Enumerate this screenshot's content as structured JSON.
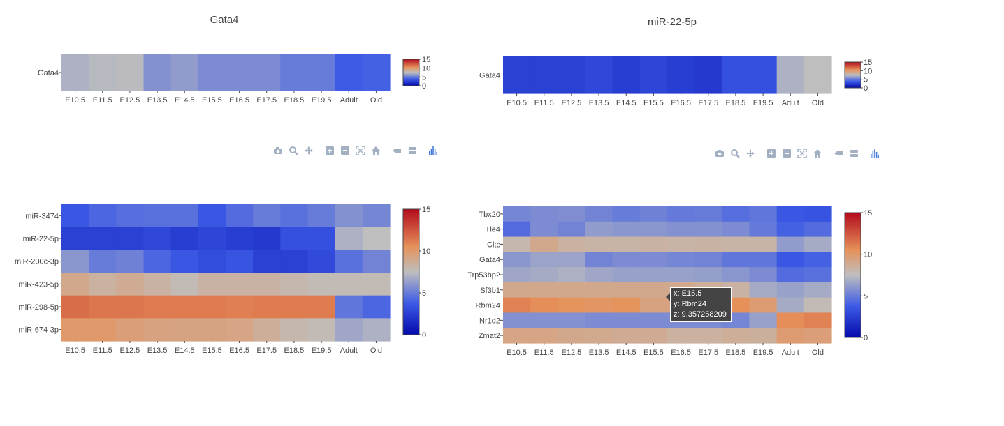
{
  "modebar": {
    "icons": [
      "camera-icon",
      "zoom-icon",
      "pan-icon",
      "zoom-in-icon",
      "zoom-out-icon",
      "autoscale-icon",
      "reset-axes-icon",
      "spike-lines-icon",
      "compare-hover-icon",
      "plotly-logo-icon"
    ],
    "color": "#a3b0c2",
    "logo_color": "#447adb"
  },
  "tooltip": {
    "x_line": "x: E15.5",
    "y_line": "y: Rbm24",
    "z_line": "z: 9.357258209"
  },
  "chart_data": [
    {
      "type": "heatmap",
      "title": "Gata4",
      "categories": [
        "E10.5",
        "E11.5",
        "E12.5",
        "E13.5",
        "E14.5",
        "E15.5",
        "E16.5",
        "E17.5",
        "E18.5",
        "E19.5",
        "Adult",
        "Old"
      ],
      "rows": [
        "Gata4"
      ],
      "z": [
        [
          7.0,
          7.3,
          7.4,
          5.8,
          6.2,
          5.6,
          5.6,
          5.6,
          5.0,
          5.0,
          3.8,
          4.0
        ]
      ],
      "zlim": [
        0,
        15
      ],
      "colorbar_ticks": [
        "0",
        "5",
        "10",
        "15"
      ],
      "colorscale": "coolwarm"
    },
    {
      "type": "heatmap",
      "title": "miR-22-5p",
      "categories": [
        "E10.5",
        "E11.5",
        "E12.5",
        "E13.5",
        "E14.5",
        "E15.5",
        "E16.5",
        "E17.5",
        "E18.5",
        "E19.5",
        "Adult",
        "Old"
      ],
      "rows": [
        "Gata4"
      ],
      "z": [
        [
          2.6,
          2.6,
          2.6,
          2.9,
          2.4,
          2.8,
          2.4,
          2.2,
          3.3,
          3.3,
          7.0,
          7.5
        ]
      ],
      "zlim": [
        0,
        15
      ],
      "colorbar_ticks": [
        "0",
        "5",
        "10",
        "15"
      ],
      "colorscale": "coolwarm"
    },
    {
      "type": "heatmap",
      "title": "",
      "categories": [
        "E10.5",
        "E11.5",
        "E12.5",
        "E13.5",
        "E14.5",
        "E15.5",
        "E16.5",
        "E17.5",
        "E18.5",
        "E19.5",
        "Adult",
        "Old"
      ],
      "rows": [
        "miR-3474",
        "miR-22-5p",
        "miR-200c-3p",
        "miR-423-5p",
        "miR-298-5p",
        "miR-674-3p"
      ],
      "z": [
        [
          3.6,
          4.2,
          4.5,
          4.6,
          4.6,
          3.6,
          4.4,
          5.0,
          4.6,
          5.0,
          5.8,
          5.4
        ],
        [
          2.6,
          2.6,
          2.6,
          2.9,
          2.4,
          2.8,
          2.4,
          2.2,
          3.3,
          3.3,
          7.0,
          7.5
        ],
        [
          6.0,
          5.0,
          5.2,
          4.2,
          3.6,
          3.1,
          3.5,
          2.6,
          2.6,
          3.0,
          4.6,
          5.3
        ],
        [
          9.0,
          8.4,
          8.8,
          8.3,
          7.8,
          8.3,
          8.3,
          8.3,
          8.0,
          7.8,
          7.8,
          7.8
        ],
        [
          11.7,
          11.4,
          11.4,
          11.2,
          11.2,
          11.2,
          11.1,
          11.2,
          11.2,
          11.2,
          4.8,
          4.2
        ],
        [
          10.0,
          10.0,
          9.6,
          9.4,
          9.3,
          9.3,
          9.2,
          8.6,
          8.0,
          7.8,
          6.6,
          7.0
        ]
      ],
      "zlim": [
        0,
        15
      ],
      "colorbar_ticks": [
        "0",
        "5",
        "10",
        "15"
      ],
      "colorscale": "coolwarm"
    },
    {
      "type": "heatmap",
      "title": "",
      "categories": [
        "E10.5",
        "E11.5",
        "E12.5",
        "E13.5",
        "E14.5",
        "E15.5",
        "E16.5",
        "E17.5",
        "E18.5",
        "E19.5",
        "Adult",
        "Old"
      ],
      "rows": [
        "Tbx20",
        "Tle4",
        "Cltc",
        "Gata4",
        "Trp53bp2",
        "Sf3b1",
        "Rbm24",
        "Nr1d2",
        "Zmat2"
      ],
      "z": [
        [
          5.4,
          5.6,
          5.7,
          5.3,
          5.0,
          5.2,
          4.9,
          5.0,
          4.5,
          4.8,
          3.6,
          3.4
        ],
        [
          4.4,
          5.6,
          5.3,
          6.2,
          6.0,
          6.0,
          5.8,
          5.8,
          5.6,
          4.9,
          4.0,
          4.4
        ],
        [
          8.0,
          9.0,
          8.4,
          8.2,
          8.2,
          8.3,
          8.2,
          8.3,
          8.2,
          8.2,
          6.2,
          6.8
        ],
        [
          6.0,
          6.5,
          6.5,
          5.3,
          5.6,
          5.6,
          5.4,
          5.3,
          4.8,
          4.8,
          3.6,
          4.0
        ],
        [
          6.6,
          6.8,
          7.0,
          6.6,
          6.4,
          6.4,
          6.4,
          6.3,
          6.0,
          5.6,
          4.4,
          4.6
        ],
        [
          9.0,
          9.0,
          9.0,
          9.0,
          9.0,
          9.0,
          8.9,
          8.6,
          8.3,
          6.8,
          6.4,
          6.8
        ],
        [
          11.0,
          10.6,
          10.4,
          10.2,
          10.4,
          9.4,
          9.4,
          9.4,
          10.5,
          9.8,
          6.8,
          7.8
        ],
        [
          5.8,
          5.8,
          5.8,
          5.6,
          5.6,
          5.6,
          5.6,
          5.6,
          5.4,
          6.4,
          10.6,
          11.0
        ],
        [
          9.2,
          9.2,
          9.0,
          8.9,
          8.8,
          8.8,
          8.4,
          8.4,
          8.6,
          8.5,
          9.8,
          9.6
        ]
      ],
      "zlim": [
        0,
        15
      ],
      "colorbar_ticks": [
        "0",
        "5",
        "10",
        "15"
      ],
      "colorscale": "coolwarm"
    }
  ]
}
